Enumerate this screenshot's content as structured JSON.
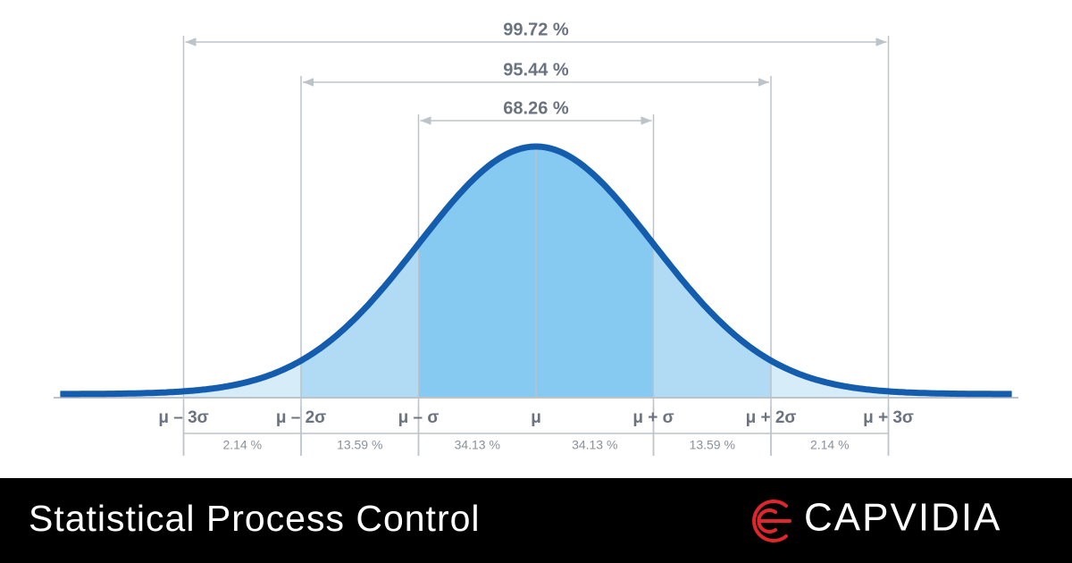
{
  "spans": [
    "99.72 %",
    "95.44 %",
    "68.26 %"
  ],
  "sigma_labels": [
    "μ – 3σ",
    "μ – 2σ",
    "μ – σ",
    "μ",
    "μ + σ",
    "μ + 2σ",
    "μ + 3σ"
  ],
  "segments": [
    "2.14 %",
    "13.59 %",
    "34.13 %",
    "34.13 %",
    "13.59 %",
    "2.14 %"
  ],
  "footer": {
    "title": "Statistical Process Control",
    "brand": "CAPVIDIA"
  }
}
